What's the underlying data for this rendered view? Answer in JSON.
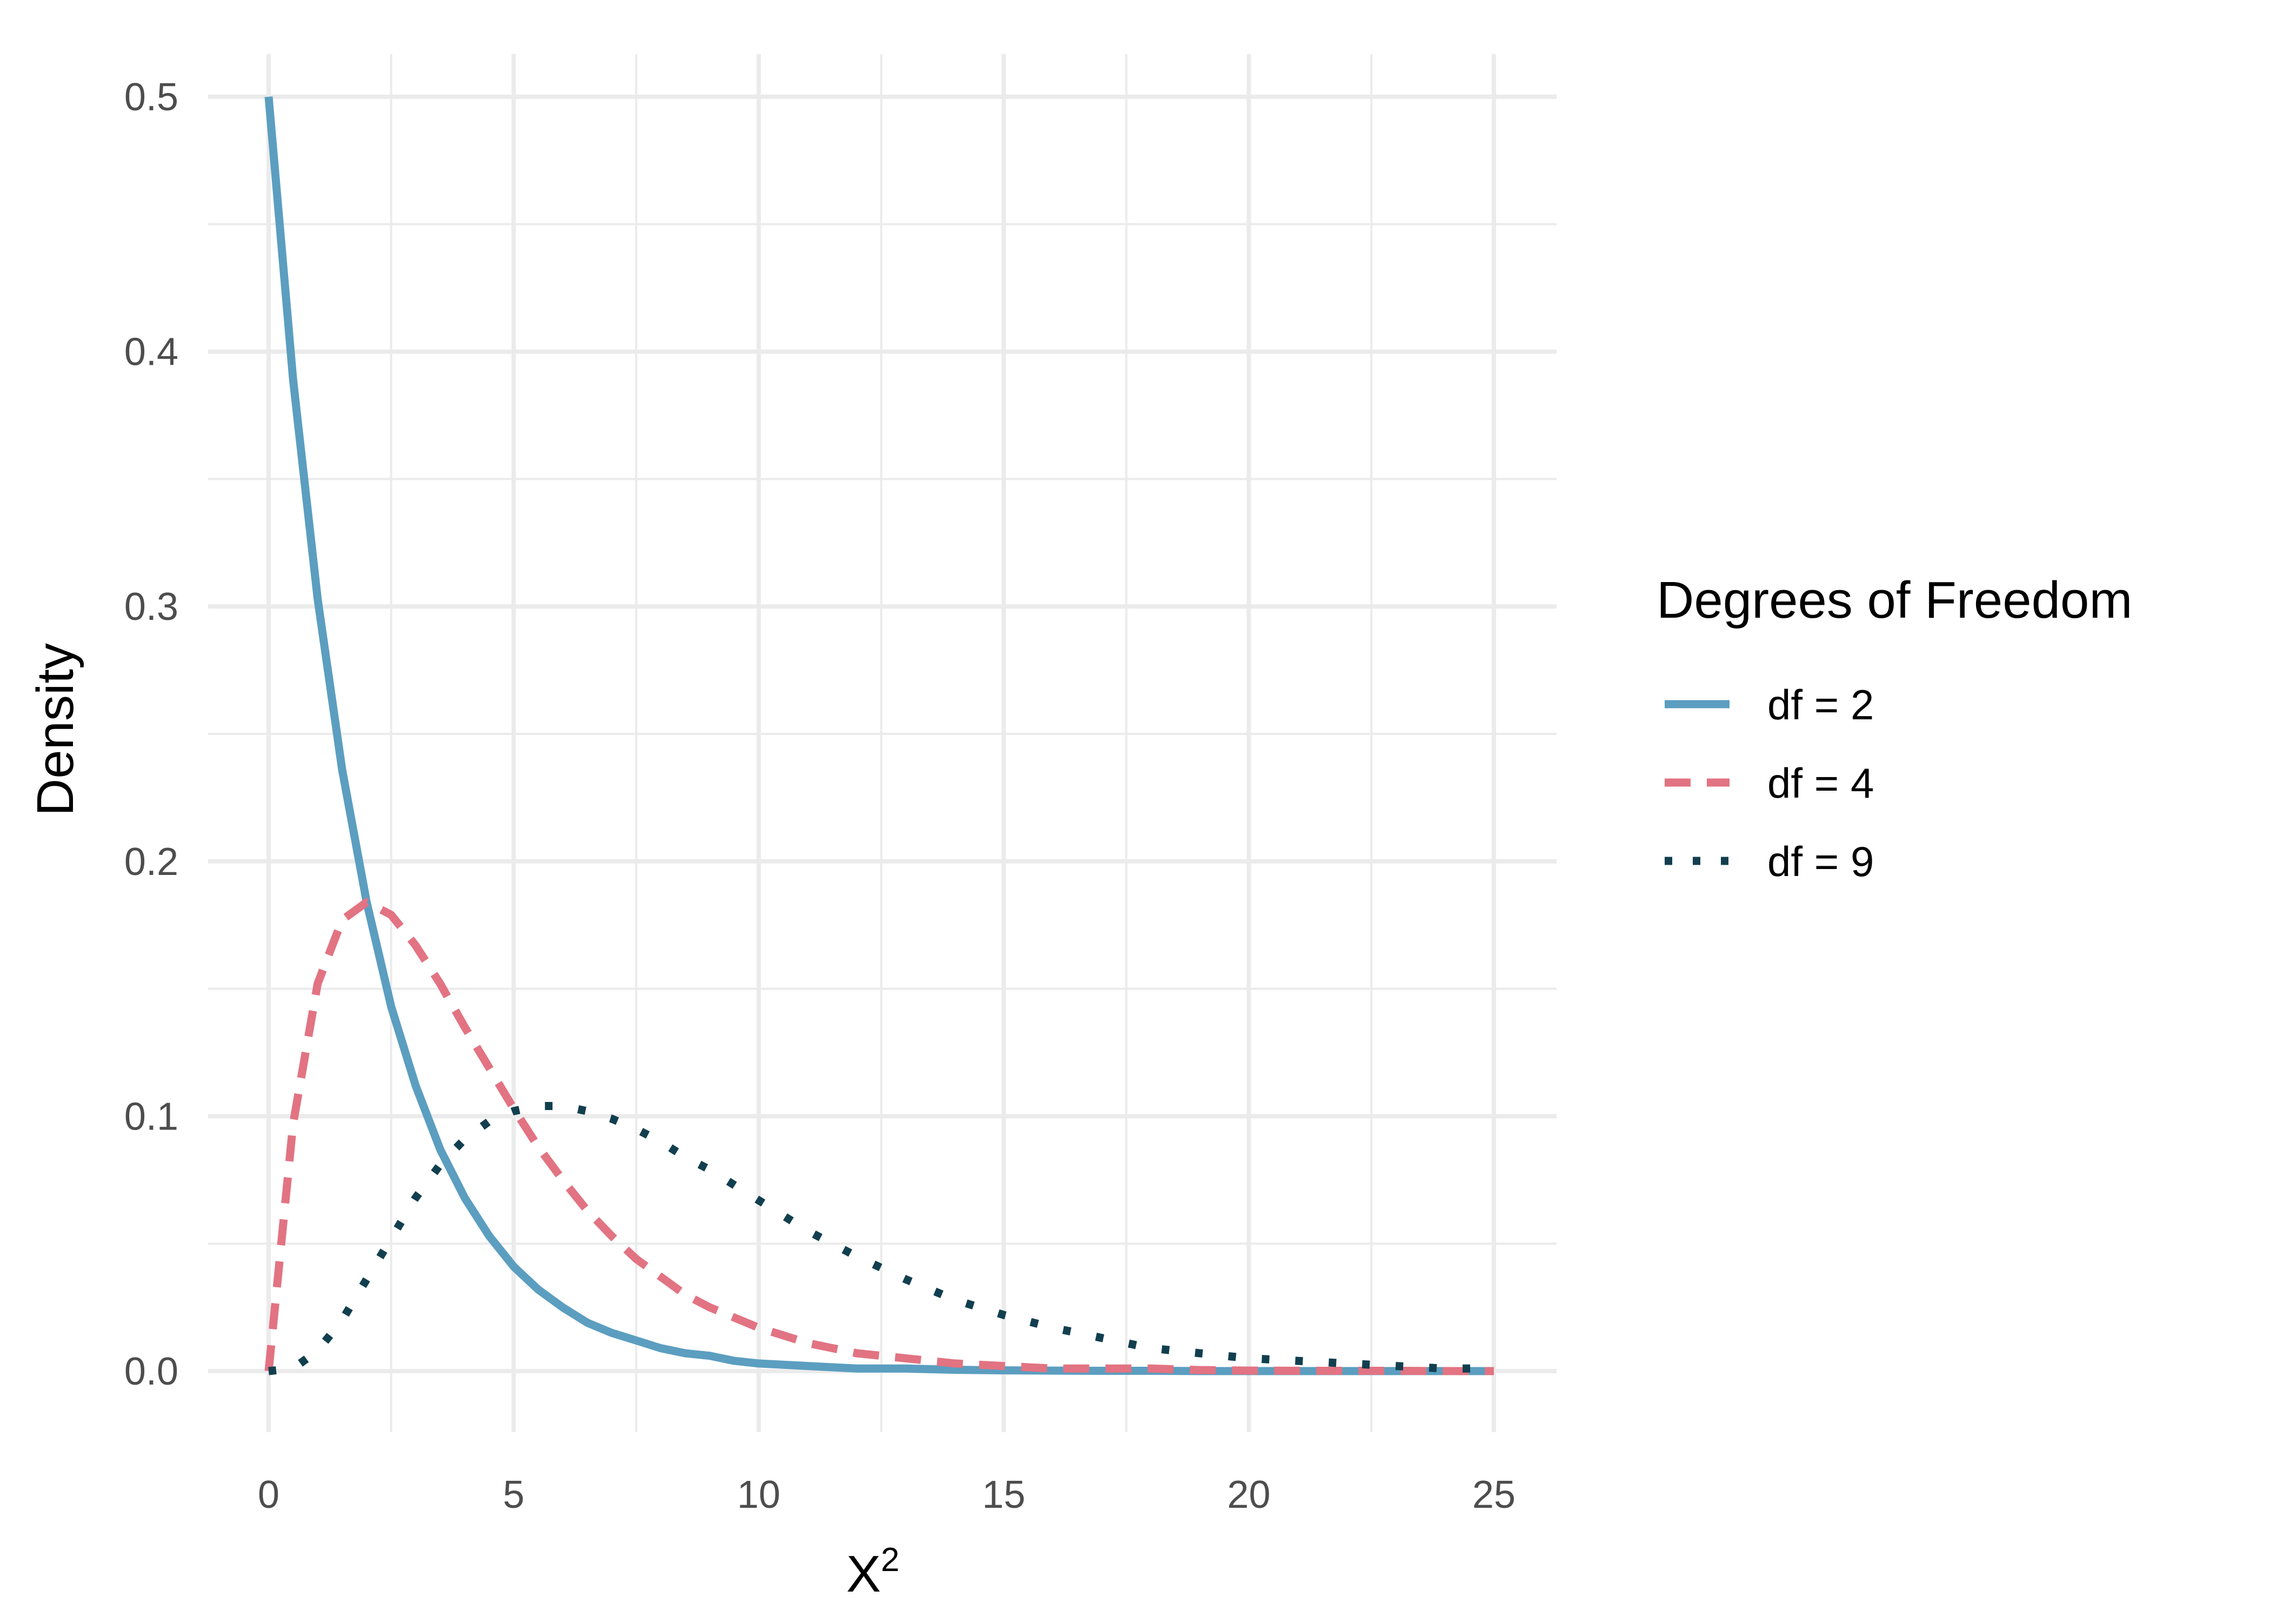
{
  "chart_data": {
    "type": "line",
    "title": "",
    "xlabel": "X",
    "xlabel_superscript": "2",
    "ylabel": "Density",
    "xlim": [
      0,
      25
    ],
    "ylim": [
      0,
      0.5
    ],
    "x_ticks": [
      0,
      5,
      10,
      15,
      20,
      25
    ],
    "x_tick_labels": [
      "0",
      "5",
      "10",
      "15",
      "20",
      "25"
    ],
    "y_ticks": [
      0,
      0.1,
      0.2,
      0.3,
      0.4,
      0.5
    ],
    "y_tick_labels": [
      "0.0",
      "0.1",
      "0.2",
      "0.3",
      "0.4",
      "0.5"
    ],
    "grid": true,
    "legend": {
      "title": "Degrees of Freedom",
      "placement": "right"
    },
    "x": [
      0,
      0.5,
      1,
      1.5,
      2,
      2.5,
      3,
      3.5,
      4,
      4.5,
      5,
      5.5,
      6,
      6.5,
      7,
      7.5,
      8,
      8.5,
      9,
      9.5,
      10,
      11,
      12,
      13,
      14,
      15,
      16,
      17,
      18,
      19,
      20,
      21,
      22,
      23,
      24,
      25
    ],
    "series": [
      {
        "name": "df = 2",
        "df": 2,
        "color": "#5b9ec0",
        "style": "solid",
        "values": [
          0.5,
          0.389,
          0.303,
          0.236,
          0.184,
          0.143,
          0.112,
          0.087,
          0.068,
          0.053,
          0.041,
          0.032,
          0.025,
          0.019,
          0.015,
          0.012,
          0.009,
          0.007,
          0.006,
          0.004,
          0.003,
          0.002,
          0.001,
          0.001,
          0.0005,
          0.0003,
          0.0002,
          0.0001,
          0.0001,
          0.0,
          0.0,
          0.0,
          0.0,
          0.0,
          0.0,
          0.0
        ]
      },
      {
        "name": "df = 4",
        "df": 4,
        "color": "#e27382",
        "style": "dashed",
        "values": [
          0.0,
          0.097,
          0.152,
          0.177,
          0.184,
          0.179,
          0.167,
          0.152,
          0.135,
          0.119,
          0.103,
          0.088,
          0.075,
          0.063,
          0.053,
          0.044,
          0.037,
          0.03,
          0.025,
          0.021,
          0.017,
          0.011,
          0.007,
          0.005,
          0.003,
          0.002,
          0.001,
          0.001,
          0.001,
          0.0004,
          0.0002,
          0.0001,
          0.0001,
          0.0001,
          0.0,
          0.0
        ]
      },
      {
        "name": "df = 9",
        "df": 9,
        "color": "#123f4f",
        "style": "dotted",
        "values": [
          0.0,
          0.001,
          0.008,
          0.02,
          0.036,
          0.052,
          0.068,
          0.081,
          0.091,
          0.098,
          0.102,
          0.104,
          0.104,
          0.102,
          0.099,
          0.095,
          0.09,
          0.084,
          0.079,
          0.073,
          0.067,
          0.055,
          0.045,
          0.036,
          0.028,
          0.022,
          0.017,
          0.013,
          0.009,
          0.007,
          0.005,
          0.004,
          0.003,
          0.002,
          0.001,
          0.001
        ]
      }
    ]
  }
}
